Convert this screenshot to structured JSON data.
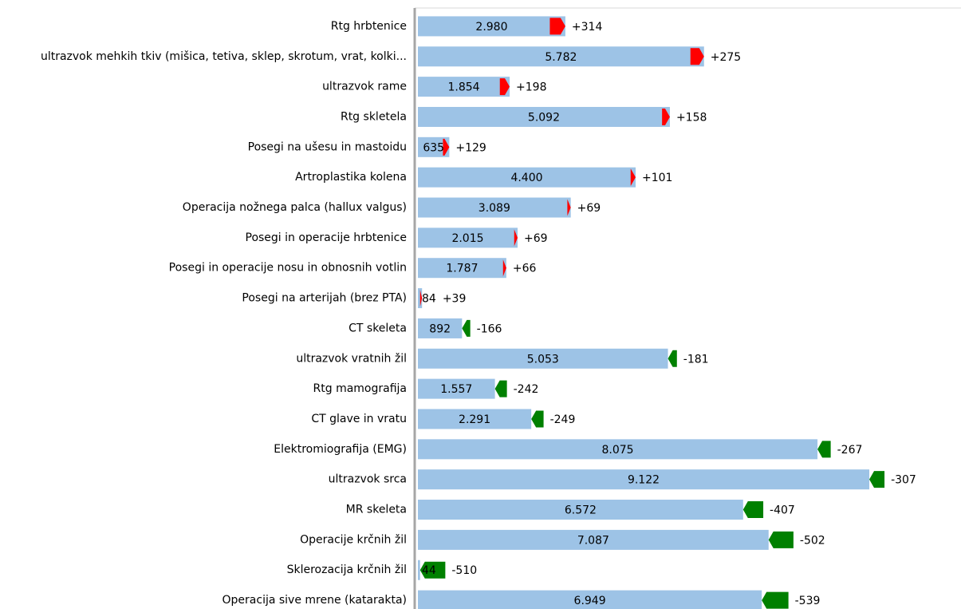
{
  "chart_data": {
    "type": "bar",
    "orientation": "horizontal",
    "categories": [
      "Rtg hrbtenice",
      "ultrazvok mehkih tkiv (mišica, tetiva, sklep, skrotum, vrat, kolki...",
      "ultrazvok rame",
      "Rtg skletela",
      "Posegi na ušesu in mastoidu",
      "Artroplastika kolena",
      "Operacija nožnega palca (hallux valgus)",
      "Posegi in operacije hrbtenice",
      "Posegi in operacije nosu in obnosnih votlin",
      "Posegi na arterijah (brez PTA)",
      "CT skeleta",
      "ultrazvok vratnih žil",
      "Rtg mamografija",
      "CT glave in vratu",
      "Elektromiografija (EMG)",
      "ultrazvok srca",
      "MR skeleta",
      "Operacije krčnih žil",
      "Sklerozacija krčnih žil",
      "Operacija sive mrene (katarakta)"
    ],
    "series": [
      {
        "color": "#9dc3e6",
        "values": [
          2980,
          5782,
          1854,
          5092,
          635,
          4400,
          3089,
          2015,
          1787,
          84,
          892,
          5053,
          1557,
          2291,
          8075,
          9122,
          6572,
          7087,
          44,
          6949
        ],
        "value_labels": [
          "2.980",
          "5.782",
          "1.854",
          "5.092",
          "635",
          "4.400",
          "3.089",
          "2.015",
          "1.787",
          "84",
          "892",
          "5.053",
          "1.557",
          "2.291",
          "8.075",
          "9.122",
          "6.572",
          "7.087",
          "44",
          "6.949"
        ]
      },
      {
        "colors": {
          "positive": "#ff0000",
          "negative": "#008000"
        },
        "values": [
          314,
          275,
          198,
          158,
          129,
          101,
          69,
          69,
          66,
          39,
          -166,
          -181,
          -242,
          -249,
          -267,
          -307,
          -407,
          -502,
          -510,
          -539
        ],
        "value_labels": [
          "+314",
          "+275",
          "+198",
          "+158",
          "+129",
          "+101",
          "+69",
          "+69",
          "+66",
          "+39",
          "-166",
          "-181",
          "-242",
          "-249",
          "-267",
          "-307",
          "-407",
          "-502",
          "-510",
          "-539"
        ]
      }
    ],
    "xlim": [
      0,
      10000
    ]
  }
}
